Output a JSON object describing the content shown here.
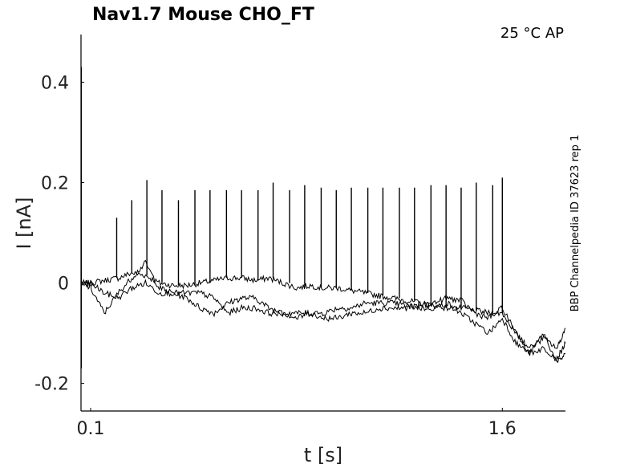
{
  "chart_data": {
    "type": "line",
    "title": "Nav1.7  Mouse  CHO_FT",
    "annotation": "25 °C  AP",
    "side_label": "BBP Channelpedia ID 37623 rep 1",
    "xlabel": "t [s]",
    "ylabel": "I [nA]",
    "xlim": [
      0.065,
      1.83
    ],
    "ylim": [
      -0.255,
      0.495
    ],
    "x_ticks": [
      {
        "value": 0.1,
        "label": "0.1"
      },
      {
        "value": 1.6,
        "label": "1.6"
      }
    ],
    "y_ticks": [
      {
        "value": -0.2,
        "label": "-0.2"
      },
      {
        "value": 0,
        "label": "0"
      },
      {
        "value": 0.2,
        "label": "0.2"
      },
      {
        "value": 0.4,
        "label": "0.4"
      }
    ],
    "grid": false,
    "line_color": "#000000",
    "initial_transient": {
      "x": 0.066,
      "ymin": -0.17,
      "ymax": 0.43
    },
    "spikes": [
      {
        "t": 0.195,
        "peak": 0.13
      },
      {
        "t": 0.25,
        "peak": 0.165
      },
      {
        "t": 0.305,
        "peak": 0.205
      },
      {
        "t": 0.36,
        "peak": 0.185
      },
      {
        "t": 0.42,
        "peak": 0.165
      },
      {
        "t": 0.48,
        "peak": 0.185
      },
      {
        "t": 0.535,
        "peak": 0.185
      },
      {
        "t": 0.595,
        "peak": 0.185
      },
      {
        "t": 0.65,
        "peak": 0.185
      },
      {
        "t": 0.71,
        "peak": 0.185
      },
      {
        "t": 0.765,
        "peak": 0.2
      },
      {
        "t": 0.825,
        "peak": 0.185
      },
      {
        "t": 0.88,
        "peak": 0.195
      },
      {
        "t": 0.94,
        "peak": 0.19
      },
      {
        "t": 0.995,
        "peak": 0.185
      },
      {
        "t": 1.05,
        "peak": 0.19
      },
      {
        "t": 1.11,
        "peak": 0.19
      },
      {
        "t": 1.165,
        "peak": 0.19
      },
      {
        "t": 1.225,
        "peak": 0.19
      },
      {
        "t": 1.28,
        "peak": 0.19
      },
      {
        "t": 1.34,
        "peak": 0.195
      },
      {
        "t": 1.395,
        "peak": 0.195
      },
      {
        "t": 1.45,
        "peak": 0.19
      },
      {
        "t": 1.505,
        "peak": 0.2
      },
      {
        "t": 1.565,
        "peak": 0.195
      },
      {
        "t": 1.6,
        "peak": 0.21
      }
    ],
    "series": [
      {
        "x": [
          0.066,
          0.1,
          0.15,
          0.2,
          0.25,
          0.3,
          0.35,
          0.4,
          0.45,
          0.5,
          0.55,
          0.6,
          0.65,
          0.7,
          0.75,
          0.8,
          0.85,
          0.9,
          0.95,
          1.0,
          1.05,
          1.1,
          1.15,
          1.2,
          1.25,
          1.3,
          1.35,
          1.4,
          1.45,
          1.5,
          1.55,
          1.6,
          1.65,
          1.7,
          1.75,
          1.8,
          1.83
        ],
        "values": [
          0.0,
          0.0,
          0.005,
          0.01,
          0.02,
          0.015,
          0.0,
          -0.005,
          -0.005,
          0.0,
          0.005,
          0.01,
          0.01,
          0.005,
          0.01,
          0.0,
          -0.01,
          -0.005,
          -0.01,
          -0.01,
          -0.015,
          -0.02,
          -0.025,
          -0.03,
          -0.035,
          -0.04,
          -0.045,
          -0.05,
          -0.05,
          -0.055,
          -0.06,
          -0.06,
          -0.1,
          -0.14,
          -0.13,
          -0.15,
          -0.12
        ]
      },
      {
        "x": [
          0.066,
          0.1,
          0.15,
          0.2,
          0.25,
          0.3,
          0.35,
          0.4,
          0.45,
          0.5,
          0.55,
          0.6,
          0.65,
          0.7,
          0.75,
          0.8,
          0.85,
          0.9,
          0.95,
          1.0,
          1.05,
          1.1,
          1.15,
          1.2,
          1.25,
          1.3,
          1.35,
          1.4,
          1.45,
          1.5,
          1.55,
          1.6,
          1.65,
          1.7,
          1.75,
          1.8,
          1.83
        ],
        "values": [
          0.0,
          -0.01,
          -0.06,
          -0.02,
          0.01,
          0.04,
          -0.01,
          -0.02,
          -0.03,
          -0.05,
          -0.06,
          -0.04,
          -0.03,
          -0.03,
          -0.05,
          -0.06,
          -0.07,
          -0.06,
          -0.06,
          -0.05,
          -0.05,
          -0.04,
          -0.04,
          -0.04,
          -0.045,
          -0.05,
          -0.05,
          -0.04,
          -0.06,
          -0.08,
          -0.1,
          -0.07,
          -0.12,
          -0.14,
          -0.1,
          -0.16,
          -0.14
        ]
      },
      {
        "x": [
          0.066,
          0.1,
          0.15,
          0.2,
          0.25,
          0.3,
          0.35,
          0.4,
          0.45,
          0.5,
          0.55,
          0.6,
          0.65,
          0.7,
          0.75,
          0.8,
          0.85,
          0.9,
          0.95,
          1.0,
          1.05,
          1.1,
          1.15,
          1.2,
          1.25,
          1.3,
          1.35,
          1.4,
          1.45,
          1.5,
          1.55,
          1.6,
          1.65,
          1.7,
          1.75,
          1.8,
          1.83
        ],
        "values": [
          -0.005,
          0.0,
          -0.02,
          -0.03,
          -0.01,
          0.0,
          -0.02,
          -0.02,
          -0.02,
          -0.02,
          -0.03,
          -0.06,
          -0.05,
          -0.05,
          -0.06,
          -0.06,
          -0.06,
          -0.06,
          -0.07,
          -0.07,
          -0.06,
          -0.06,
          -0.05,
          -0.05,
          -0.05,
          -0.045,
          -0.04,
          -0.03,
          -0.035,
          -0.06,
          -0.07,
          -0.05,
          -0.1,
          -0.13,
          -0.11,
          -0.13,
          -0.09
        ]
      }
    ]
  }
}
